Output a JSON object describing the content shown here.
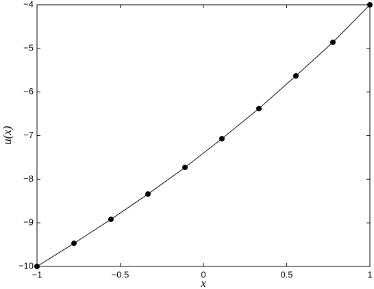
{
  "chart_data": {
    "type": "line",
    "xlabel": "x",
    "ylabel": "u(x)",
    "x": [
      -1,
      -0.7778,
      -0.5556,
      -0.3333,
      -0.1111,
      0.1111,
      0.3333,
      0.5556,
      0.7778,
      1
    ],
    "series": [
      {
        "color": "#000000",
        "values": [
          -10,
          -9.47,
          -8.92,
          -8.34,
          -7.73,
          -7.07,
          -6.38,
          -5.63,
          -4.86,
          -4
        ]
      }
    ],
    "xlim": [
      -1,
      1
    ],
    "xticks": [
      {
        "value": -1,
        "label": "−1"
      },
      {
        "value": -0.5,
        "label": "−0.5"
      },
      0,
      0.5,
      1
    ],
    "ylim": [
      -10,
      -4
    ],
    "yticks": [
      {
        "value": -10,
        "label": "−10"
      },
      {
        "value": -9,
        "label": "−9"
      },
      {
        "value": -8,
        "label": "−8"
      },
      {
        "value": -7,
        "label": "−7"
      },
      {
        "value": -6,
        "label": "−6"
      },
      {
        "value": -5,
        "label": "−5"
      },
      {
        "value": -4,
        "label": "−4"
      }
    ],
    "grid": false
  }
}
